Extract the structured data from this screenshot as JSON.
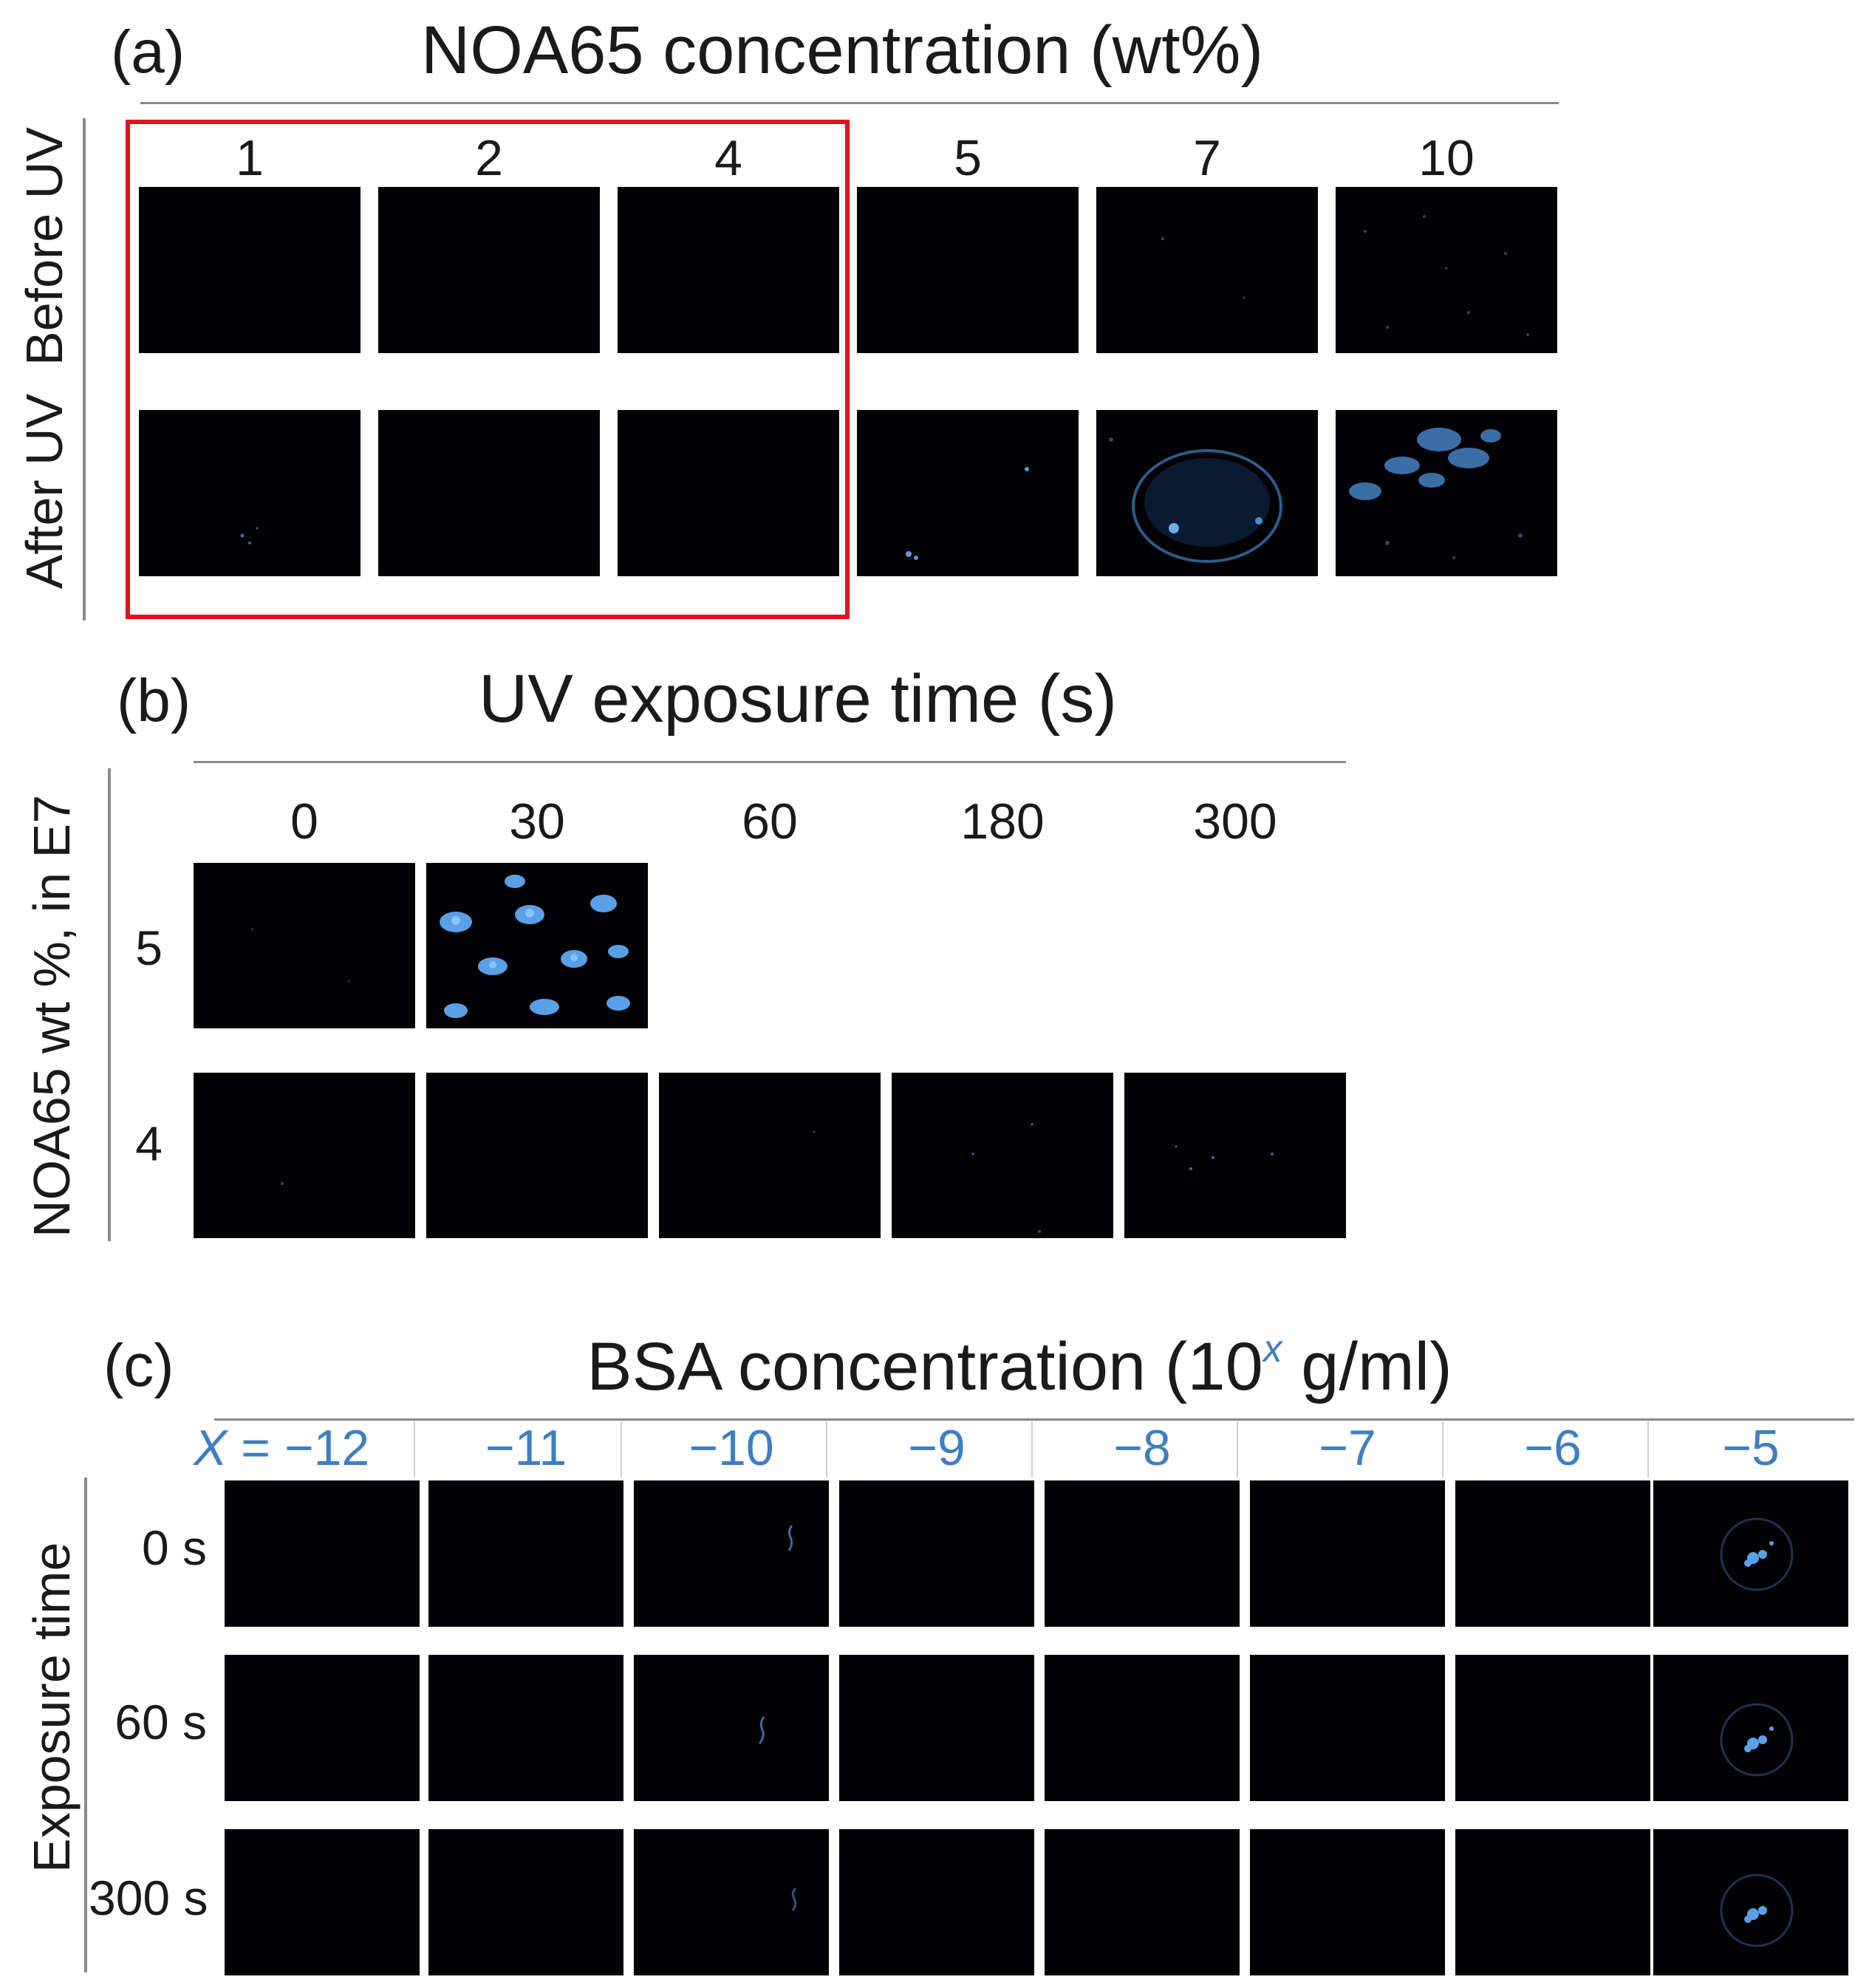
{
  "panel_a": {
    "label": "(a)",
    "title": "NOA65 concentration (wt%)",
    "row_labels": [
      "Before UV",
      "After UV"
    ],
    "columns": [
      "1",
      "2",
      "4",
      "5",
      "7",
      "10"
    ]
  },
  "panel_b": {
    "label": "(b)",
    "title": "UV exposure time (s)",
    "side_label": "NOA65 wt %, in E7",
    "columns": [
      "0",
      "30",
      "60",
      "180",
      "300"
    ],
    "rows": [
      "5",
      "4"
    ]
  },
  "panel_c": {
    "label": "(c)",
    "title_main": "BSA concentration (10",
    "title_sup": "x",
    "title_end": " g/ml)",
    "side_label": "Exposure time",
    "x_prefix": "X",
    "x_eq": " = ",
    "columns": [
      "−12",
      "−11",
      "−10",
      "−9",
      "−8",
      "−7",
      "−6",
      "−5"
    ],
    "rows": [
      "0 s",
      "60 s",
      "300 s"
    ]
  },
  "colors": {
    "highlight_box": "#e0141b",
    "label_blue": "#3d7fc2",
    "image_bg": "#020205",
    "droplet_blue": "#4a90d9"
  }
}
